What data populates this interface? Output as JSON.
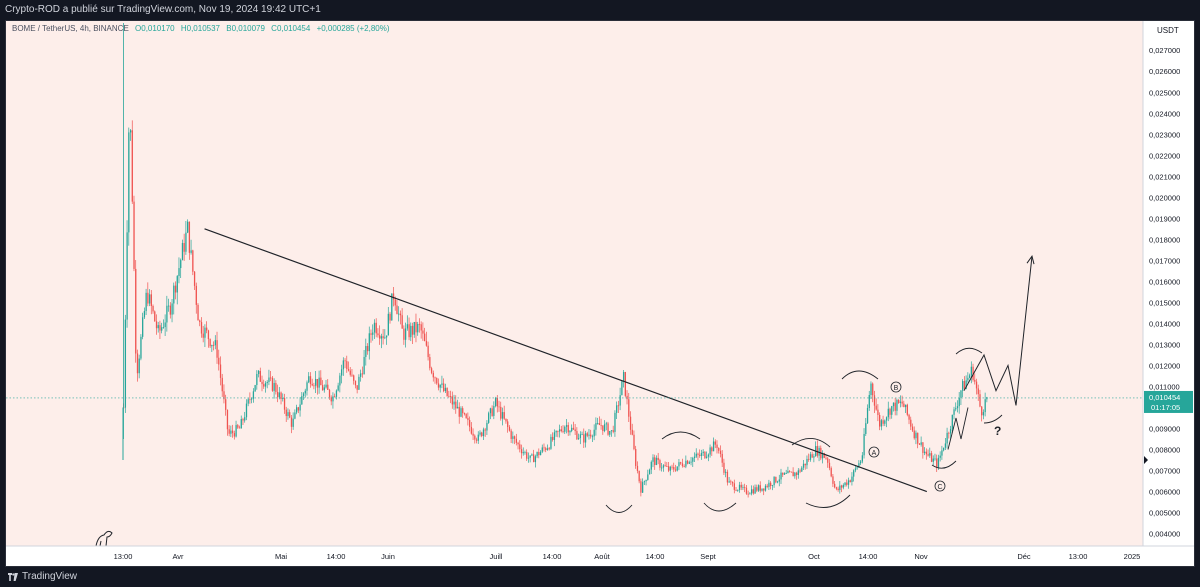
{
  "header": {
    "published_by": "Crypto-ROD a publié sur TradingView.com, Nov 19, 2024 19:42 UTC+1"
  },
  "legend": {
    "symbol": "BOME / TetherUS, 4h, BINANCE",
    "open": "O0,010170",
    "high": "H0,010537",
    "low": "B0,010079",
    "close": "C0,010454",
    "change": "+0,000285 (+2,80%)"
  },
  "footer": {
    "brand": "TradingView"
  },
  "colors": {
    "background": "#fdeeea",
    "up": "#26a69a",
    "down": "#ef5350",
    "price_badge": "#26a69a",
    "text": "#131722"
  },
  "chart_data": {
    "type": "candlestick",
    "currency_label": "USDT",
    "y_axis": {
      "ticks": [
        "0,004000",
        "0,005000",
        "0,006000",
        "0,007000",
        "0,008000",
        "0,009000",
        "0,010000",
        "0,011000",
        "0,012000",
        "0,013000",
        "0,014000",
        "0,015000",
        "0,016000",
        "0,017000",
        "0,018000",
        "0,019000",
        "0,020000",
        "0,021000",
        "0,022000",
        "0,023000",
        "0,024000",
        "0,025000",
        "0,026000",
        "0,027000"
      ],
      "range": [
        0.0036,
        0.0282
      ]
    },
    "x_axis": {
      "ticks": [
        "13:00",
        "Avr",
        "Mai",
        "14:00",
        "Juin",
        "Juill",
        "14:00",
        "Août",
        "14:00",
        "Sept",
        "Oct",
        "14:00",
        "Nov",
        "Déc",
        "13:00",
        "2025"
      ]
    },
    "current_price": {
      "value": "0,010454",
      "countdown": "01:17:05"
    },
    "price_path": [
      [
        0.0,
        0.01
      ],
      [
        1.0,
        0.0248
      ],
      [
        1.5,
        0.02
      ],
      [
        2.2,
        0.0115
      ],
      [
        4.0,
        0.0155
      ],
      [
        6.0,
        0.0135
      ],
      [
        8.0,
        0.0148
      ],
      [
        11.0,
        0.0185
      ],
      [
        13.0,
        0.014
      ],
      [
        16.0,
        0.0128
      ],
      [
        18.0,
        0.0087
      ],
      [
        20.0,
        0.009
      ],
      [
        23.0,
        0.0115
      ],
      [
        26.0,
        0.011
      ],
      [
        29.0,
        0.0092
      ],
      [
        32.0,
        0.0115
      ],
      [
        36.0,
        0.0105
      ],
      [
        38.0,
        0.0123
      ],
      [
        40.0,
        0.0108
      ],
      [
        43.0,
        0.014
      ],
      [
        45.0,
        0.0134
      ],
      [
        46.5,
        0.0155
      ],
      [
        48.0,
        0.0135
      ],
      [
        51.0,
        0.0138
      ],
      [
        53.0,
        0.0118
      ],
      [
        55.0,
        0.0108
      ],
      [
        58.0,
        0.0097
      ],
      [
        61.0,
        0.0085
      ],
      [
        64.0,
        0.0102
      ],
      [
        67.0,
        0.0085
      ],
      [
        70.0,
        0.0075
      ],
      [
        73.0,
        0.0082
      ],
      [
        76.0,
        0.0092
      ],
      [
        79.0,
        0.0085
      ],
      [
        82.0,
        0.0092
      ],
      [
        84.0,
        0.0088
      ],
      [
        86.0,
        0.0114
      ],
      [
        88.0,
        0.0075
      ],
      [
        89.0,
        0.0061
      ],
      [
        91.0,
        0.0075
      ],
      [
        94.0,
        0.007
      ],
      [
        97.0,
        0.0075
      ],
      [
        100.0,
        0.0078
      ],
      [
        102.0,
        0.0083
      ],
      [
        104.0,
        0.0064
      ],
      [
        107.0,
        0.006
      ],
      [
        110.0,
        0.0062
      ],
      [
        113.0,
        0.0067
      ],
      [
        116.0,
        0.0069
      ],
      [
        119.0,
        0.008
      ],
      [
        121.0,
        0.0076
      ],
      [
        122.5,
        0.006
      ],
      [
        125.0,
        0.0066
      ],
      [
        127.0,
        0.0076
      ],
      [
        128.5,
        0.0112
      ],
      [
        130.0,
        0.0092
      ],
      [
        132.0,
        0.01
      ],
      [
        134.0,
        0.0102
      ],
      [
        136.0,
        0.0088
      ],
      [
        138.0,
        0.0078
      ],
      [
        140.0,
        0.0073
      ],
      [
        142.0,
        0.009
      ],
      [
        144.0,
        0.0108
      ],
      [
        146.0,
        0.0118
      ],
      [
        147.5,
        0.0098
      ],
      [
        148.5,
        0.010454
      ]
    ],
    "trendline": {
      "from": [
        14.0,
        0.0185
      ],
      "to": [
        138.0,
        0.006
      ]
    },
    "annotations": [
      "A",
      "B",
      "C",
      "?"
    ]
  }
}
